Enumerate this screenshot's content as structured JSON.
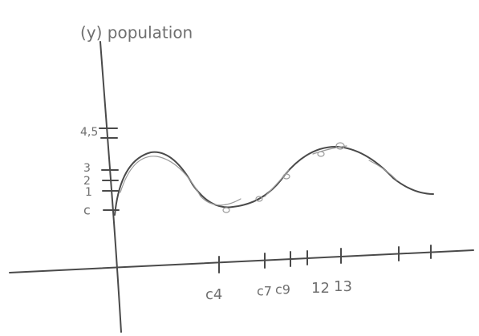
{
  "axis_title": "(y) population",
  "y_labels": [
    "4,5",
    "3",
    "2",
    "1",
    "c"
  ],
  "x_labels": [
    "c4",
    "c7",
    "c9",
    "12",
    "13"
  ]
}
